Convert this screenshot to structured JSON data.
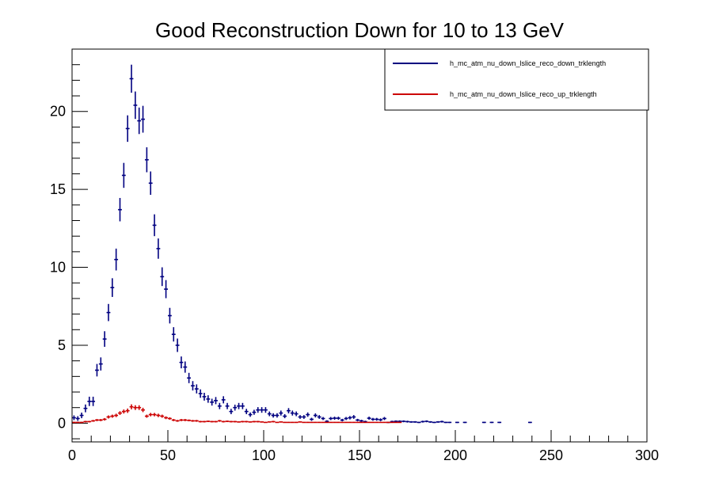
{
  "chart_data": {
    "type": "scatter",
    "title": "Good Reconstruction Down for 10 to 13 GeV",
    "xlabel": "",
    "ylabel": "",
    "xlim": [
      0,
      300
    ],
    "ylim": [
      -1.2,
      24.0
    ],
    "x_ticks": [
      0,
      50,
      100,
      150,
      200,
      250,
      300
    ],
    "y_ticks": [
      0,
      5,
      10,
      15,
      20
    ],
    "bin_width": 2,
    "legend": {
      "position": "top-right"
    },
    "series": [
      {
        "name": "h_mc_atm_nu_down_lslice_reco_down_trklength",
        "color": "#000080",
        "x": [
          1,
          3,
          5,
          7,
          9,
          11,
          13,
          15,
          17,
          19,
          21,
          23,
          25,
          27,
          29,
          31,
          33,
          35,
          37,
          39,
          41,
          43,
          45,
          47,
          49,
          51,
          53,
          55,
          57,
          59,
          61,
          63,
          65,
          67,
          69,
          71,
          73,
          75,
          77,
          79,
          81,
          83,
          85,
          87,
          89,
          91,
          93,
          95,
          97,
          99,
          101,
          103,
          105,
          107,
          109,
          111,
          113,
          115,
          117,
          119,
          121,
          123,
          125,
          127,
          129,
          131,
          133,
          135,
          137,
          139,
          141,
          143,
          145,
          147,
          149,
          151,
          153,
          155,
          157,
          159,
          161,
          163,
          165,
          167,
          169,
          171,
          173,
          175,
          177,
          179,
          181,
          183,
          185,
          187,
          189,
          191,
          193,
          195,
          197,
          201,
          205,
          215,
          219,
          223,
          239
        ],
        "y": [
          0.35,
          0.3,
          0.5,
          0.95,
          1.4,
          1.4,
          3.4,
          3.8,
          5.4,
          7.1,
          8.7,
          10.5,
          13.7,
          15.9,
          18.9,
          22.1,
          20.4,
          19.4,
          19.5,
          16.9,
          15.4,
          12.7,
          11.2,
          9.4,
          8.6,
          6.9,
          5.7,
          5.0,
          3.9,
          3.6,
          2.9,
          2.4,
          2.2,
          1.9,
          1.7,
          1.55,
          1.35,
          1.45,
          1.1,
          1.5,
          1.1,
          0.75,
          1.0,
          1.1,
          1.1,
          0.75,
          0.55,
          0.7,
          0.85,
          0.85,
          0.85,
          0.6,
          0.5,
          0.5,
          0.65,
          0.45,
          0.8,
          0.65,
          0.6,
          0.4,
          0.4,
          0.55,
          0.25,
          0.5,
          0.4,
          0.3,
          0.12,
          0.3,
          0.32,
          0.32,
          0.2,
          0.3,
          0.35,
          0.4,
          0.2,
          0.15,
          0.1,
          0.32,
          0.25,
          0.25,
          0.22,
          0.3,
          0.05,
          0.1,
          0.12,
          0.12,
          0.12,
          0.1,
          0.08,
          0.08,
          0.05,
          0.1,
          0.12,
          0.08,
          0.05,
          0.08,
          0.1,
          0.05,
          0.05,
          0.05,
          0.05,
          0.05,
          0.05,
          0.05,
          0.05
        ],
        "yerr": [
          0.15,
          0.15,
          0.18,
          0.25,
          0.3,
          0.3,
          0.4,
          0.42,
          0.5,
          0.55,
          0.6,
          0.7,
          0.75,
          0.8,
          0.85,
          0.9,
          0.88,
          0.85,
          0.86,
          0.8,
          0.75,
          0.7,
          0.65,
          0.6,
          0.58,
          0.5,
          0.46,
          0.43,
          0.38,
          0.36,
          0.33,
          0.3,
          0.29,
          0.27,
          0.25,
          0.24,
          0.22,
          0.23,
          0.2,
          0.23,
          0.2,
          0.17,
          0.19,
          0.2,
          0.2,
          0.17,
          0.14,
          0.16,
          0.18,
          0.18,
          0.18,
          0.15,
          0.14,
          0.14,
          0.16,
          0.13,
          0.17,
          0.16,
          0.15,
          0.12,
          0.12,
          0.14,
          0.1,
          0.13,
          0.12,
          0.1,
          0.07,
          0.1,
          0.1,
          0.1,
          0.08,
          0.1,
          0.11,
          0.12,
          0.08,
          0.07,
          0.06,
          0.1,
          0.09,
          0.09,
          0.09,
          0.1,
          0.04,
          0.06,
          0.06,
          0.06,
          0.06,
          0.06,
          0.05,
          0.05,
          0.04,
          0.06,
          0.06,
          0.05,
          0.04,
          0.05,
          0.06,
          0.04,
          0.04,
          0.04,
          0.04,
          0.04,
          0.04,
          0.04,
          0.04
        ]
      },
      {
        "name": "h_mc_atm_nu_down_lslice_reco_up_trklength",
        "color": "#cc0000",
        "x": [
          1,
          3,
          5,
          7,
          9,
          11,
          13,
          15,
          17,
          19,
          21,
          23,
          25,
          27,
          29,
          31,
          33,
          35,
          37,
          39,
          41,
          43,
          45,
          47,
          49,
          51,
          53,
          55,
          57,
          59,
          61,
          63,
          65,
          67,
          69,
          71,
          73,
          75,
          77,
          79,
          81,
          83,
          85,
          87,
          89,
          91,
          93,
          95,
          97,
          99,
          101,
          103,
          105,
          107,
          109,
          111,
          113,
          115,
          117,
          119,
          121,
          123,
          125,
          127,
          129,
          131,
          133,
          135,
          137,
          139,
          141,
          143,
          145,
          147,
          149,
          151,
          153,
          155,
          157,
          159,
          161,
          163,
          165,
          167,
          169,
          171
        ],
        "y": [
          0.05,
          0.05,
          0.05,
          0.1,
          0.1,
          0.15,
          0.2,
          0.2,
          0.25,
          0.4,
          0.45,
          0.5,
          0.65,
          0.75,
          0.8,
          1.05,
          1.0,
          1.0,
          0.85,
          0.45,
          0.55,
          0.55,
          0.5,
          0.45,
          0.35,
          0.3,
          0.2,
          0.15,
          0.2,
          0.2,
          0.18,
          0.15,
          0.15,
          0.1,
          0.1,
          0.12,
          0.1,
          0.1,
          0.15,
          0.1,
          0.12,
          0.1,
          0.1,
          0.08,
          0.1,
          0.1,
          0.08,
          0.1,
          0.1,
          0.08,
          0.05,
          0.08,
          0.1,
          0.05,
          0.08,
          0.05,
          0.05,
          0.05,
          0.05,
          0.08,
          0.05,
          0.05,
          0.05,
          0.05,
          0.05,
          0.05,
          0.05,
          0.05,
          0.05,
          0.05,
          0.05,
          0.05,
          0.05,
          0.05,
          0.05,
          0.05,
          0.05,
          0.05,
          0.05,
          0.05,
          0.05,
          0.05,
          0.05,
          0.05,
          0.05,
          0.05
        ],
        "yerr": [
          0.04,
          0.04,
          0.04,
          0.05,
          0.05,
          0.06,
          0.07,
          0.07,
          0.08,
          0.1,
          0.1,
          0.11,
          0.12,
          0.13,
          0.14,
          0.16,
          0.15,
          0.15,
          0.14,
          0.1,
          0.11,
          0.11,
          0.11,
          0.1,
          0.09,
          0.08,
          0.07,
          0.06,
          0.07,
          0.07,
          0.06,
          0.06,
          0.06,
          0.05,
          0.05,
          0.05,
          0.05,
          0.05,
          0.06,
          0.05,
          0.05,
          0.05,
          0.05,
          0.04,
          0.05,
          0.05,
          0.04,
          0.05,
          0.05,
          0.04,
          0.03,
          0.04,
          0.05,
          0.03,
          0.04,
          0.03,
          0.03,
          0.03,
          0.03,
          0.04,
          0.03,
          0.03,
          0.03,
          0.03,
          0.03,
          0.03,
          0.03,
          0.03,
          0.03,
          0.03,
          0.03,
          0.03,
          0.03,
          0.03,
          0.03,
          0.03,
          0.03,
          0.03,
          0.03,
          0.03,
          0.03,
          0.03,
          0.03,
          0.03,
          0.03,
          0.03
        ]
      }
    ]
  }
}
